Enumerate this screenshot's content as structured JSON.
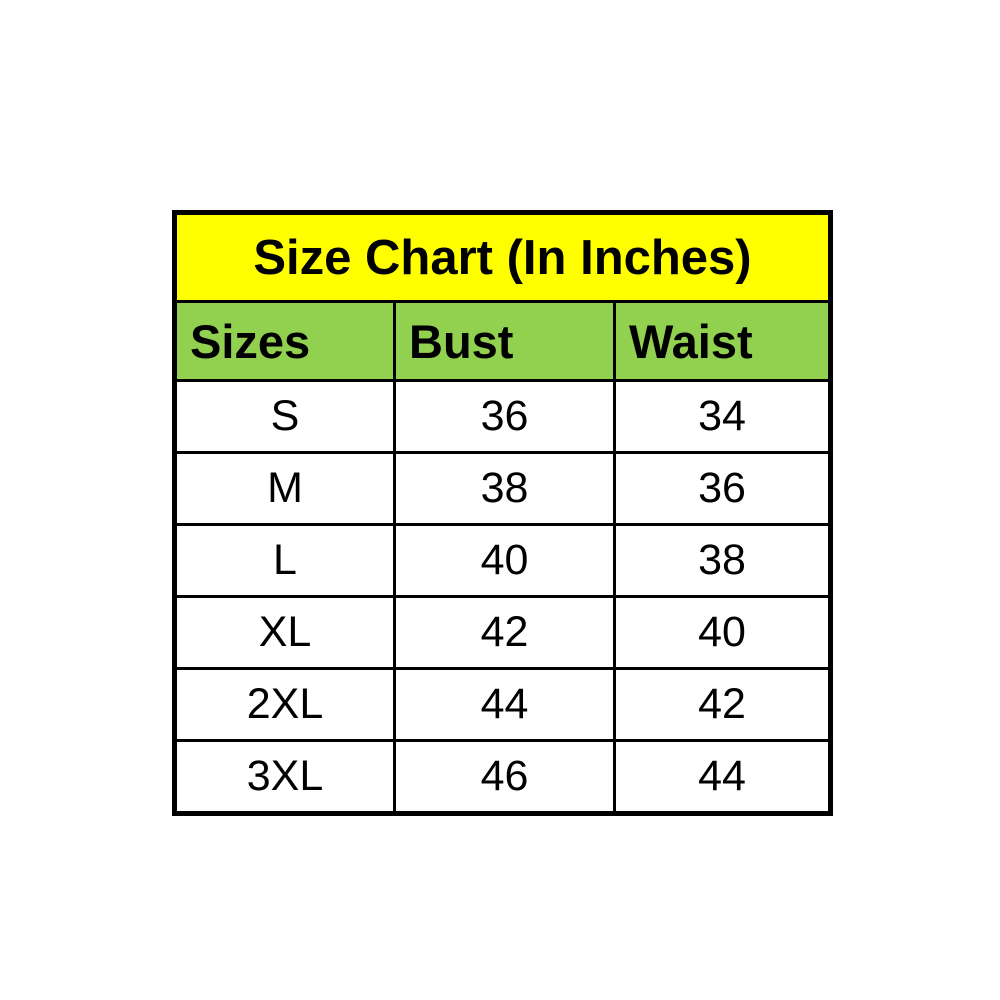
{
  "chart_data": {
    "type": "table",
    "title": "Size Chart (In Inches)",
    "columns": [
      "Sizes",
      "Bust",
      "Waist"
    ],
    "rows": [
      [
        "S",
        "36",
        "34"
      ],
      [
        "M",
        "38",
        "36"
      ],
      [
        "L",
        "40",
        "38"
      ],
      [
        "XL",
        "42",
        "40"
      ],
      [
        "2XL",
        "44",
        "42"
      ],
      [
        "3XL",
        "46",
        "44"
      ]
    ],
    "units": "inches"
  },
  "colors": {
    "title_bg": "#FFFF00",
    "header_bg": "#92D050",
    "border": "#000000",
    "text": "#000000",
    "page_bg": "#FFFFFF"
  }
}
